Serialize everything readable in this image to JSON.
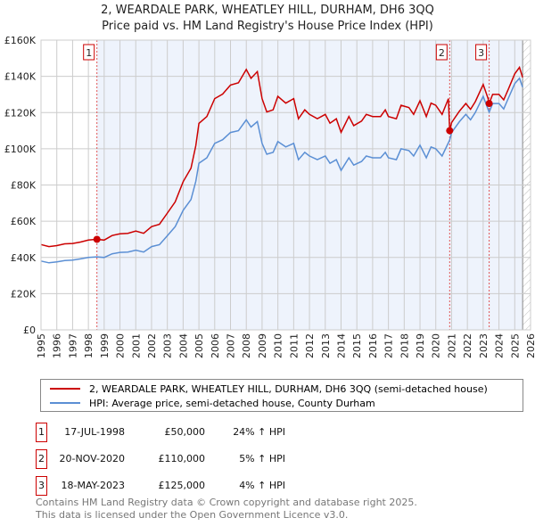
{
  "chart_data": {
    "type": "line",
    "title": "2, WEARDALE PARK, WHEATLEY HILL, DURHAM, DH6 3QQ",
    "subtitle": "Price paid vs. HM Land Registry's House Price Index (HPI)",
    "xlim": [
      1995,
      2026
    ],
    "ylim": [
      0,
      160000
    ],
    "x_ticks": [
      "1995",
      "1996",
      "1997",
      "1998",
      "1999",
      "2000",
      "2001",
      "2002",
      "2003",
      "2004",
      "2005",
      "2006",
      "2007",
      "2008",
      "2009",
      "2010",
      "2011",
      "2012",
      "2013",
      "2014",
      "2015",
      "2016",
      "2017",
      "2018",
      "2019",
      "2020",
      "2021",
      "2022",
      "2023",
      "2024",
      "2025",
      "2026"
    ],
    "y_ticks": [
      {
        "v": 0,
        "label": "£0"
      },
      {
        "v": 20000,
        "label": "£20K"
      },
      {
        "v": 40000,
        "label": "£40K"
      },
      {
        "v": 60000,
        "label": "£60K"
      },
      {
        "v": 80000,
        "label": "£80K"
      },
      {
        "v": 100000,
        "label": "£100K"
      },
      {
        "v": 120000,
        "label": "£120K"
      },
      {
        "v": 140000,
        "label": "£140K"
      },
      {
        "v": 160000,
        "label": "£160K"
      }
    ],
    "grid": true,
    "shaded_from": 1998.54,
    "hatched_from": 2025.5,
    "series": [
      {
        "name": "2, WEARDALE PARK, WHEATLEY HILL, DURHAM, DH6 3QQ (semi-detached house)",
        "color": "#cc0000",
        "points": [
          [
            1995,
            47.1
          ],
          [
            1995.5,
            46
          ],
          [
            1996,
            46.5
          ],
          [
            1996.5,
            47.5
          ],
          [
            1997,
            47.7
          ],
          [
            1997.5,
            48.5
          ],
          [
            1998,
            49.6
          ],
          [
            1998.54,
            50
          ],
          [
            1999,
            49.6
          ],
          [
            1999.5,
            52.1
          ],
          [
            2000,
            53
          ],
          [
            2000.5,
            53.3
          ],
          [
            2001,
            54.6
          ],
          [
            2001.5,
            53.3
          ],
          [
            2002,
            57
          ],
          [
            2002.5,
            58.3
          ],
          [
            2003,
            64.5
          ],
          [
            2003.5,
            70.7
          ],
          [
            2004,
            81.8
          ],
          [
            2004.5,
            89.3
          ],
          [
            2004.8,
            101.7
          ],
          [
            2005,
            114
          ],
          [
            2005.5,
            117.8
          ],
          [
            2006,
            127.7
          ],
          [
            2006.5,
            130.2
          ],
          [
            2007,
            135.2
          ],
          [
            2007.5,
            136.4
          ],
          [
            2008,
            143.8
          ],
          [
            2008.3,
            138.9
          ],
          [
            2008.7,
            142.6
          ],
          [
            2009,
            127.7
          ],
          [
            2009.3,
            120.3
          ],
          [
            2009.7,
            121.5
          ],
          [
            2010,
            129
          ],
          [
            2010.5,
            125.2
          ],
          [
            2011,
            127.7
          ],
          [
            2011.3,
            116.6
          ],
          [
            2011.7,
            121.5
          ],
          [
            2012,
            119
          ],
          [
            2012.5,
            116.6
          ],
          [
            2013,
            119
          ],
          [
            2013.3,
            114.1
          ],
          [
            2013.7,
            116.6
          ],
          [
            2014,
            109.1
          ],
          [
            2014.5,
            117.8
          ],
          [
            2014.8,
            112.8
          ],
          [
            2015.3,
            115.3
          ],
          [
            2015.6,
            119
          ],
          [
            2016,
            117.8
          ],
          [
            2016.5,
            117.8
          ],
          [
            2016.8,
            121.5
          ],
          [
            2017,
            117.8
          ],
          [
            2017.5,
            116.6
          ],
          [
            2017.8,
            124
          ],
          [
            2018.3,
            122.8
          ],
          [
            2018.6,
            119
          ],
          [
            2019,
            126.5
          ],
          [
            2019.4,
            117.8
          ],
          [
            2019.7,
            125.2
          ],
          [
            2020,
            124
          ],
          [
            2020.4,
            119
          ],
          [
            2020.8,
            127.7
          ],
          [
            2020.88,
            110
          ],
          [
            2021,
            114.5
          ],
          [
            2021.5,
            120.8
          ],
          [
            2021.9,
            125
          ],
          [
            2022.2,
            121.8
          ],
          [
            2022.5,
            126
          ],
          [
            2023,
            135.5
          ],
          [
            2023.3,
            128
          ],
          [
            2023.38,
            125
          ],
          [
            2023.6,
            130
          ],
          [
            2024,
            130
          ],
          [
            2024.3,
            127
          ],
          [
            2024.6,
            133
          ],
          [
            2025,
            141.4
          ],
          [
            2025.3,
            145
          ],
          [
            2025.5,
            139.4
          ]
        ]
      },
      {
        "name": "HPI: Average price, semi-detached house, County Durham",
        "color": "#5b8fd4",
        "points": [
          [
            1995,
            38
          ],
          [
            1995.5,
            37
          ],
          [
            1996,
            37.5
          ],
          [
            1996.5,
            38.3
          ],
          [
            1997,
            38.5
          ],
          [
            1997.5,
            39.2
          ],
          [
            1998,
            40
          ],
          [
            1998.54,
            40.3
          ],
          [
            1999,
            40
          ],
          [
            1999.5,
            42
          ],
          [
            2000,
            42.8
          ],
          [
            2000.5,
            43
          ],
          [
            2001,
            44
          ],
          [
            2001.5,
            43
          ],
          [
            2002,
            46
          ],
          [
            2002.5,
            47
          ],
          [
            2003,
            52
          ],
          [
            2003.5,
            57
          ],
          [
            2004,
            66
          ],
          [
            2004.5,
            72
          ],
          [
            2004.8,
            82
          ],
          [
            2005,
            92
          ],
          [
            2005.5,
            95
          ],
          [
            2006,
            103
          ],
          [
            2006.5,
            105
          ],
          [
            2007,
            109
          ],
          [
            2007.5,
            110
          ],
          [
            2008,
            116
          ],
          [
            2008.3,
            112
          ],
          [
            2008.7,
            115
          ],
          [
            2009,
            103
          ],
          [
            2009.3,
            97
          ],
          [
            2009.7,
            98
          ],
          [
            2010,
            104
          ],
          [
            2010.5,
            101
          ],
          [
            2011,
            103
          ],
          [
            2011.3,
            94
          ],
          [
            2011.7,
            98
          ],
          [
            2012,
            96
          ],
          [
            2012.5,
            94
          ],
          [
            2013,
            96
          ],
          [
            2013.3,
            92
          ],
          [
            2013.7,
            94
          ],
          [
            2014,
            88
          ],
          [
            2014.5,
            95
          ],
          [
            2014.8,
            91
          ],
          [
            2015.3,
            93
          ],
          [
            2015.6,
            96
          ],
          [
            2016,
            95
          ],
          [
            2016.5,
            95
          ],
          [
            2016.8,
            98
          ],
          [
            2017,
            95
          ],
          [
            2017.5,
            94
          ],
          [
            2017.8,
            100
          ],
          [
            2018.3,
            99
          ],
          [
            2018.6,
            96
          ],
          [
            2019,
            102
          ],
          [
            2019.4,
            95
          ],
          [
            2019.7,
            101
          ],
          [
            2020,
            100
          ],
          [
            2020.4,
            96
          ],
          [
            2020.88,
            104.8
          ],
          [
            2021,
            109
          ],
          [
            2021.5,
            115
          ],
          [
            2021.9,
            119
          ],
          [
            2022.2,
            116
          ],
          [
            2022.5,
            120
          ],
          [
            2023,
            129
          ],
          [
            2023.3,
            122
          ],
          [
            2023.38,
            120.2
          ],
          [
            2023.6,
            125
          ],
          [
            2024,
            125
          ],
          [
            2024.3,
            122
          ],
          [
            2024.6,
            128
          ],
          [
            2025,
            136
          ],
          [
            2025.3,
            139
          ],
          [
            2025.5,
            134
          ]
        ]
      }
    ],
    "y_unit": "thousands GBP",
    "sales": [
      {
        "label": "1",
        "x": 1998.54,
        "price": 50000,
        "date": "17-JUL-1998",
        "price_text": "£50,000",
        "hpi_text": "24% ↑ HPI"
      },
      {
        "label": "2",
        "x": 2020.88,
        "price": 110000,
        "date": "20-NOV-2020",
        "price_text": "£110,000",
        "hpi_text": "5% ↑ HPI"
      },
      {
        "label": "3",
        "x": 2023.38,
        "price": 125000,
        "date": "18-MAY-2023",
        "price_text": "£125,000",
        "hpi_text": "4% ↑ HPI"
      }
    ]
  },
  "footer": {
    "line1": "Contains HM Land Registry data © Crown copyright and database right 2025.",
    "line2": "This data is licensed under the Open Government Licence v3.0."
  }
}
